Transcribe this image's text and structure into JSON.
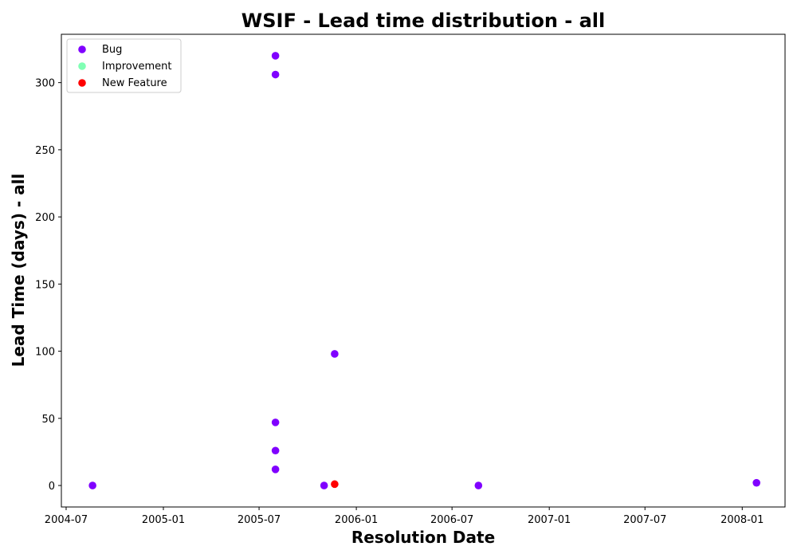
{
  "chart_data": {
    "type": "scatter",
    "title": "WSIF - Lead time distribution - all",
    "xlabel": "Resolution Date",
    "ylabel": "Lead Time (days) - all",
    "x_type": "date",
    "xlim": [
      "2004-06-22",
      "2008-03-22"
    ],
    "ylim": [
      -16,
      336
    ],
    "x_ticks": [
      "2004-07-01",
      "2005-01-01",
      "2005-07-01",
      "2006-01-01",
      "2006-07-01",
      "2007-01-01",
      "2007-07-01",
      "2008-01-01"
    ],
    "x_tick_labels": [
      "2004-07",
      "2005-01",
      "2005-07",
      "2006-01",
      "2006-07",
      "2007-01",
      "2007-07",
      "2008-01"
    ],
    "y_ticks": [
      0,
      50,
      100,
      150,
      200,
      250,
      300
    ],
    "y_tick_labels": [
      "0",
      "50",
      "100",
      "150",
      "200",
      "250",
      "300"
    ],
    "grid": false,
    "legend_position": "top-left",
    "series": [
      {
        "name": "Bug",
        "color": "#8000ff",
        "points": [
          {
            "x": "2004-08-20",
            "y": 0
          },
          {
            "x": "2005-08-01",
            "y": 320
          },
          {
            "x": "2005-08-01",
            "y": 306
          },
          {
            "x": "2005-08-01",
            "y": 47
          },
          {
            "x": "2005-08-01",
            "y": 26
          },
          {
            "x": "2005-08-01",
            "y": 12
          },
          {
            "x": "2005-11-01",
            "y": 0
          },
          {
            "x": "2005-11-21",
            "y": 98
          },
          {
            "x": "2006-08-20",
            "y": 0
          },
          {
            "x": "2008-01-28",
            "y": 2
          }
        ]
      },
      {
        "name": "Improvement",
        "color": "#80ffb4",
        "points": []
      },
      {
        "name": "New Feature",
        "color": "#ff0000",
        "points": [
          {
            "x": "2005-11-21",
            "y": 1
          }
        ]
      }
    ]
  }
}
